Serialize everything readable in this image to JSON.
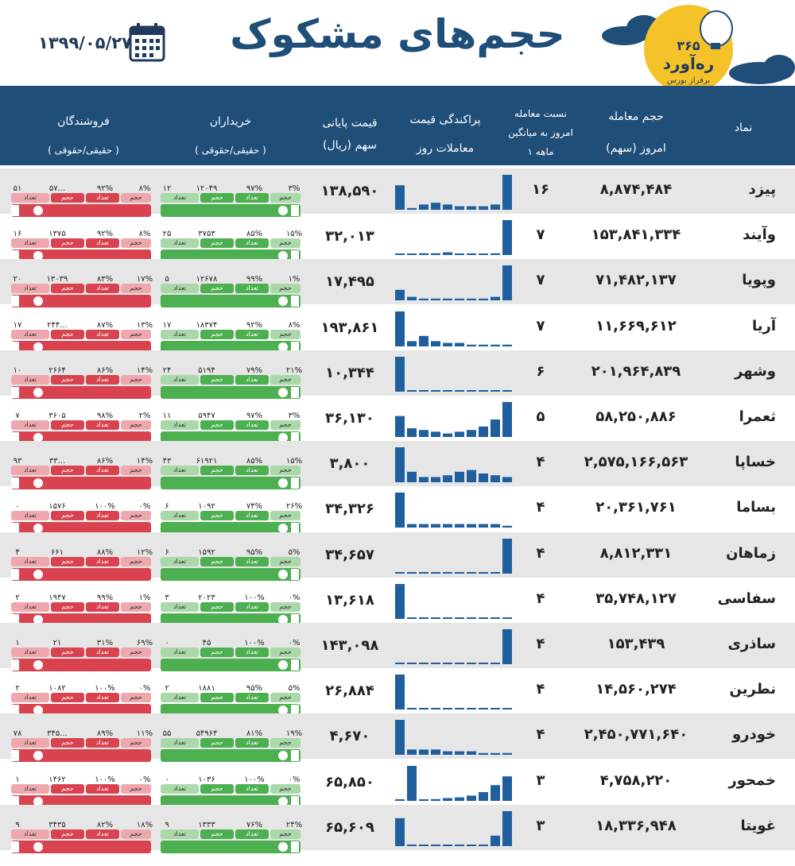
{
  "header": {
    "date": "۱۳۹۹/۰۵/۲۷",
    "title": "حجم‌های مشکوک",
    "logo_number": "۳۶۵",
    "logo_name": "ره‌آورد",
    "logo_sub": "برفراز بورس"
  },
  "columns": {
    "symbol": "نماد",
    "volume_l1": "حجم معامله",
    "volume_l2": "امروز (سهم)",
    "ratio_l1": "نسبت معامله",
    "ratio_l2": "امروز به میانگین",
    "ratio_l3": "۱ ماهه",
    "dispersion_l1": "پراکندگی قیمت",
    "dispersion_l2": "معاملات روز",
    "price_l1": "قیمت پایانی",
    "price_l2": "سهم (ریال)",
    "buyers_l1": "خریداران",
    "buyers_l2": "( حقیقی/حقوقی )",
    "sellers_l1": "فروشندگان",
    "sellers_l2": "( حقیقی/حقوقی )"
  },
  "labels": {
    "volume": "حجم",
    "count": "تعداد"
  },
  "colors": {
    "header_bg": "#1f4e79",
    "buyer": "#4caf50",
    "buyer_light": "#a9d8a9",
    "seller": "#d9434f",
    "seller_light": "#eea7ac",
    "spark": "#1f5f9e"
  },
  "chart_data": {
    "type": "table",
    "rows": [
      {
        "symbol": "پیزد",
        "volume": "۸,۸۷۴,۴۸۴",
        "ratio": "۱۶",
        "price": "۱۳۸,۵۹۰",
        "buy": {
          "pct_legal_vol": "۳%",
          "n_legal": "۱۲",
          "pct_real_vol": "۹۷%",
          "n_real": "۱۲۰۴۹"
        },
        "sell": {
          "pct_legal_vol": "۸%",
          "n_legal": "۵۱",
          "pct_real_vol": "۹۲%",
          "n_real": "۵۷..."
        },
        "dispersion": [
          0.7,
          0.05,
          0.15,
          0.2,
          0.15,
          0.1,
          0.1,
          0.1,
          0.15,
          1.0
        ]
      },
      {
        "symbol": "وآیند",
        "volume": "۱۵۳,۸۴۱,۳۳۴",
        "ratio": "۷",
        "price": "۳۲,۰۱۳",
        "buy": {
          "pct_legal_vol": "۱۵%",
          "n_legal": "۲۵",
          "pct_real_vol": "۸۵%",
          "n_real": "۳۷۵۳"
        },
        "sell": {
          "pct_legal_vol": "۸%",
          "n_legal": "۱۶",
          "pct_real_vol": "۹۲%",
          "n_real": "۱۳۷۵"
        },
        "dispersion": [
          0.02,
          0.02,
          0.05,
          0.05,
          0.08,
          0.02,
          0.02,
          0.02,
          0.05,
          1.0
        ]
      },
      {
        "symbol": "وپویا",
        "volume": "۷۱,۴۸۲,۱۳۷",
        "ratio": "۷",
        "price": "۱۷,۴۹۵",
        "buy": {
          "pct_legal_vol": "۱%",
          "n_legal": "۵",
          "pct_real_vol": "۹۹%",
          "n_real": "۱۲۶۷۸"
        },
        "sell": {
          "pct_legal_vol": "۱۷%",
          "n_legal": "۲۰",
          "pct_real_vol": "۸۳%",
          "n_real": "۱۳۰۳۹"
        },
        "dispersion": [
          0.3,
          0.1,
          0.05,
          0.05,
          0.05,
          0.05,
          0.05,
          0.05,
          0.1,
          1.0
        ]
      },
      {
        "symbol": "آریا",
        "volume": "۱۱,۶۶۹,۶۱۲",
        "ratio": "۷",
        "price": "۱۹۳,۸۶۱",
        "buy": {
          "pct_legal_vol": "۸%",
          "n_legal": "۱۷",
          "pct_real_vol": "۹۲%",
          "n_real": "۱۸۳۷۴"
        },
        "sell": {
          "pct_legal_vol": "۱۳%",
          "n_legal": "۱۷",
          "pct_real_vol": "۸۷%",
          "n_real": "۲۴۴..."
        },
        "dispersion": [
          1.0,
          0.15,
          0.3,
          0.15,
          0.1,
          0.1,
          0.05,
          0.05,
          0.05,
          0.05
        ]
      },
      {
        "symbol": "وشهر",
        "volume": "۲۰۱,۹۶۴,۸۳۹",
        "ratio": "۶",
        "price": "۱۰,۳۴۴",
        "buy": {
          "pct_legal_vol": "۲۱%",
          "n_legal": "۲۴",
          "pct_real_vol": "۷۹%",
          "n_real": "۵۱۹۴"
        },
        "sell": {
          "pct_legal_vol": "۱۴%",
          "n_legal": "۱۰",
          "pct_real_vol": "۸۶%",
          "n_real": "۲۶۶۴"
        },
        "dispersion": [
          1.0,
          0.02,
          0.02,
          0.02,
          0.02,
          0.02,
          0.02,
          0.02,
          0.02,
          0.02
        ]
      },
      {
        "symbol": "ثعمرا",
        "volume": "۵۸,۲۵۰,۸۸۶",
        "ratio": "۵",
        "price": "۳۶,۱۳۰",
        "buy": {
          "pct_legal_vol": "۳%",
          "n_legal": "۱۱",
          "pct_real_vol": "۹۷%",
          "n_real": "۵۹۴۷"
        },
        "sell": {
          "pct_legal_vol": "۲%",
          "n_legal": "۷",
          "pct_real_vol": "۹۸%",
          "n_real": "۳۶۰۵"
        },
        "dispersion": [
          0.6,
          0.25,
          0.2,
          0.15,
          0.1,
          0.15,
          0.2,
          0.3,
          0.5,
          1.0
        ]
      },
      {
        "symbol": "خساپا",
        "volume": "۲,۵۷۵,۱۶۶,۵۶۳",
        "ratio": "۴",
        "price": "۳,۸۰۰",
        "buy": {
          "pct_legal_vol": "۱۵%",
          "n_legal": "۴۳",
          "pct_real_vol": "۸۵%",
          "n_real": "۶۱۹۲۱"
        },
        "sell": {
          "pct_legal_vol": "۱۴%",
          "n_legal": "۹۳",
          "pct_real_vol": "۸۶%",
          "n_real": "۳۳..."
        },
        "dispersion": [
          1.0,
          0.3,
          0.15,
          0.15,
          0.2,
          0.3,
          0.35,
          0.25,
          0.2,
          0.15
        ]
      },
      {
        "symbol": "بساما",
        "volume": "۲۰,۳۶۱,۷۶۱",
        "ratio": "۴",
        "price": "۳۴,۳۲۶",
        "buy": {
          "pct_legal_vol": "۲۶%",
          "n_legal": "۶",
          "pct_real_vol": "۷۴%",
          "n_real": "۱۰۹۲"
        },
        "sell": {
          "pct_legal_vol": "۰%",
          "n_legal": "۰",
          "pct_real_vol": "۱۰۰%",
          "n_real": "۱۵۷۶"
        },
        "dispersion": [
          1.0,
          0.1,
          0.1,
          0.1,
          0.1,
          0.1,
          0.1,
          0.1,
          0.1,
          0.05
        ]
      },
      {
        "symbol": "زماهان",
        "volume": "۸,۸۱۲,۳۳۱",
        "ratio": "۴",
        "price": "۳۴,۶۵۷",
        "buy": {
          "pct_legal_vol": "۵%",
          "n_legal": "۶",
          "pct_real_vol": "۹۵%",
          "n_real": "۱۵۹۲"
        },
        "sell": {
          "pct_legal_vol": "۱۲%",
          "n_legal": "۴",
          "pct_real_vol": "۸۸%",
          "n_real": "۶۶۱"
        },
        "dispersion": [
          0.02,
          0.02,
          0.02,
          0.02,
          0.02,
          0.02,
          0.02,
          0.02,
          0.02,
          1.0
        ]
      },
      {
        "symbol": "سفاسی",
        "volume": "۳۵,۷۴۸,۱۲۷",
        "ratio": "۴",
        "price": "۱۳,۶۱۸",
        "buy": {
          "pct_legal_vol": "۰%",
          "n_legal": "۳",
          "pct_real_vol": "۱۰۰%",
          "n_real": "۲۰۲۳"
        },
        "sell": {
          "pct_legal_vol": "۱%",
          "n_legal": "۲",
          "pct_real_vol": "۹۹%",
          "n_real": "۱۹۴۷"
        },
        "dispersion": [
          1.0,
          0.02,
          0.02,
          0.02,
          0.02,
          0.02,
          0.02,
          0.02,
          0.02,
          0.02
        ]
      },
      {
        "symbol": "ساذری",
        "volume": "۱۵۳,۴۳۹",
        "ratio": "۴",
        "price": "۱۴۳,۰۹۸",
        "buy": {
          "pct_legal_vol": "۰%",
          "n_legal": "۰",
          "pct_real_vol": "۱۰۰%",
          "n_real": "۴۵"
        },
        "sell": {
          "pct_legal_vol": "۶۹%",
          "n_legal": "۱",
          "pct_real_vol": "۳۱%",
          "n_real": "۲۱"
        },
        "dispersion": [
          0,
          0,
          0,
          0,
          0,
          0,
          0,
          0,
          0,
          1.0
        ]
      },
      {
        "symbol": "نطرین",
        "volume": "۱۴,۵۶۰,۲۷۴",
        "ratio": "۴",
        "price": "۲۶,۸۸۴",
        "buy": {
          "pct_legal_vol": "۵%",
          "n_legal": "۲",
          "pct_real_vol": "۹۵%",
          "n_real": "۱۸۸۱"
        },
        "sell": {
          "pct_legal_vol": "۰%",
          "n_legal": "۲",
          "pct_real_vol": "۱۰۰%",
          "n_real": "۱۰۸۲"
        },
        "dispersion": [
          1.0,
          0.02,
          0.02,
          0.02,
          0.02,
          0.02,
          0.02,
          0.02,
          0.02,
          0.02
        ]
      },
      {
        "symbol": "خودرو",
        "volume": "۲,۴۵۰,۷۷۱,۶۴۰",
        "ratio": "۴",
        "price": "۴,۶۷۰",
        "buy": {
          "pct_legal_vol": "۱۹%",
          "n_legal": "۵۵",
          "pct_real_vol": "۸۱%",
          "n_real": "۵۴۹۶۴"
        },
        "sell": {
          "pct_legal_vol": "۱۱%",
          "n_legal": "۷۸",
          "pct_real_vol": "۸۹%",
          "n_real": "۳۴۵..."
        },
        "dispersion": [
          1.0,
          0.15,
          0.15,
          0.15,
          0.1,
          0.1,
          0.1,
          0.05,
          0.05,
          0.05
        ]
      },
      {
        "symbol": "خمحور",
        "volume": "۴,۷۵۸,۲۲۰",
        "ratio": "۳",
        "price": "۶۵,۸۵۰",
        "buy": {
          "pct_legal_vol": "۰%",
          "n_legal": "۰",
          "pct_real_vol": "۱۰۰%",
          "n_real": "۱۰۳۶"
        },
        "sell": {
          "pct_legal_vol": "۰%",
          "n_legal": "۱",
          "pct_real_vol": "۱۰۰%",
          "n_real": "۱۴۶۲"
        },
        "dispersion": [
          0,
          1.0,
          0.02,
          0.05,
          0.08,
          0.1,
          0.15,
          0.25,
          0.45,
          0.7
        ]
      },
      {
        "symbol": "غویتا",
        "volume": "۱۸,۳۳۶,۹۴۸",
        "ratio": "۳",
        "price": "۶۵,۶۰۹",
        "buy": {
          "pct_legal_vol": "۲۴%",
          "n_legal": "۹",
          "pct_real_vol": "۷۶%",
          "n_real": "۱۳۳۳"
        },
        "sell": {
          "pct_legal_vol": "۱۸%",
          "n_legal": "۹",
          "pct_real_vol": "۸۲%",
          "n_real": "۳۴۳۵"
        },
        "dispersion": [
          0.8,
          0.02,
          0.02,
          0.02,
          0.02,
          0.02,
          0.02,
          0.02,
          0.3,
          1.0
        ]
      }
    ]
  }
}
